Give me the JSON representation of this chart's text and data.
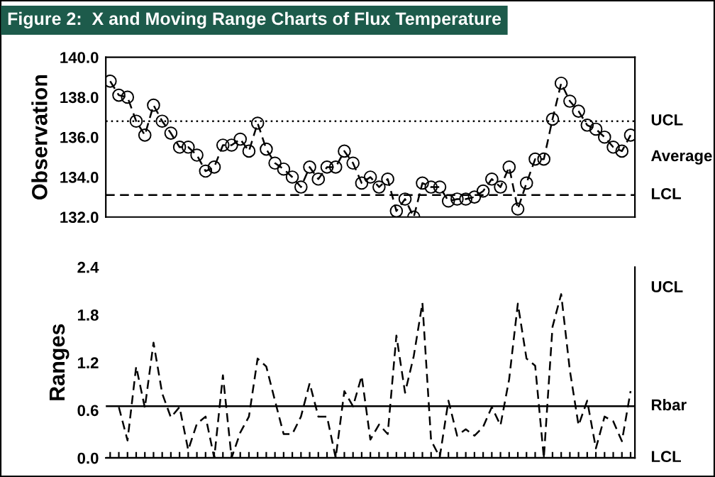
{
  "chart_data": [
    {
      "type": "line",
      "title": "Figure 2:  X and Moving Range Charts of Flux Temperature",
      "ylabel": "Observation",
      "categories": [
        null,
        null,
        null,
        null,
        null,
        null,
        null,
        null,
        null,
        null,
        null,
        null,
        null,
        null,
        null,
        null,
        null,
        null,
        null,
        null,
        null,
        null,
        null,
        null,
        null,
        null,
        null,
        null,
        null,
        null,
        null,
        null,
        null,
        null,
        null,
        null,
        null,
        null,
        null,
        null,
        null,
        null,
        null,
        null,
        null,
        null,
        null,
        null,
        null,
        null,
        null,
        null,
        null,
        null,
        null,
        null,
        null,
        null,
        null,
        null,
        null
      ],
      "series": [
        {
          "color": "#000000",
          "marker": "circle",
          "line_style": "dashed",
          "values": [
            138.8,
            138.1,
            138.0,
            136.8,
            136.1,
            137.6,
            136.8,
            136.2,
            135.5,
            135.5,
            135.1,
            134.3,
            134.5,
            135.6,
            135.6,
            135.9,
            135.3,
            136.7,
            135.4,
            134.7,
            134.4,
            134.0,
            133.5,
            134.5,
            133.9,
            134.5,
            134.5,
            135.3,
            134.7,
            133.7,
            134.0,
            133.5,
            133.9,
            132.3,
            132.9,
            132.0,
            133.7,
            133.5,
            133.5,
            132.8,
            132.9,
            132.9,
            133.0,
            133.3,
            133.9,
            133.5,
            134.5,
            132.4,
            133.7,
            134.9,
            134.9,
            136.9,
            138.7,
            137.8,
            137.3,
            136.6,
            136.4,
            136.0,
            135.5,
            135.3,
            136.1
          ]
        }
      ],
      "ylim": [
        132,
        140
      ],
      "yticks": [
        {
          "value": 132,
          "label": "132.0"
        },
        {
          "value": 134,
          "label": "134.0"
        },
        {
          "value": 136,
          "label": "136.0"
        },
        {
          "value": 138,
          "label": "138.0"
        },
        {
          "value": 140,
          "label": "140.0"
        }
      ],
      "ref_lines": [
        {
          "axis": "y",
          "value": 136.8,
          "label": "UCL",
          "line_style": "dotted"
        },
        {
          "axis": "y",
          "value": 133.1,
          "label": "LCL",
          "line_style": "dashed"
        }
      ],
      "annotations": [
        "Average"
      ],
      "tick_labels": "y",
      "grid": false,
      "legend": false
    },
    {
      "type": "line",
      "ylabel": "Ranges",
      "categories": [
        null,
        null,
        null,
        null,
        null,
        null,
        null,
        null,
        null,
        null,
        null,
        null,
        null,
        null,
        null,
        null,
        null,
        null,
        null,
        null,
        null,
        null,
        null,
        null,
        null,
        null,
        null,
        null,
        null,
        null,
        null,
        null,
        null,
        null,
        null,
        null,
        null,
        null,
        null,
        null,
        null,
        null,
        null,
        null,
        null,
        null,
        null,
        null,
        null,
        null,
        null,
        null,
        null,
        null,
        null,
        null,
        null,
        null,
        null,
        null,
        null
      ],
      "series": [
        {
          "color": "#000000",
          "marker": "none",
          "line_style": "dashed",
          "values": [
            null,
            0.64,
            0.22,
            1.15,
            0.63,
            1.45,
            0.81,
            0.51,
            0.64,
            0.1,
            0.43,
            0.52,
            0.0,
            1.04,
            0.0,
            0.32,
            0.52,
            1.25,
            1.15,
            0.72,
            0.3,
            0.3,
            0.52,
            0.94,
            0.52,
            0.52,
            0.0,
            0.84,
            0.65,
            1.03,
            0.23,
            0.42,
            0.3,
            1.54,
            0.82,
            1.28,
            1.95,
            0.22,
            0.01,
            0.72,
            0.28,
            0.36,
            0.28,
            0.39,
            0.64,
            0.41,
            0.99,
            1.94,
            1.25,
            1.16,
            0.0,
            1.65,
            2.06,
            1.1,
            0.41,
            0.72,
            0.12,
            0.52,
            0.46,
            0.21,
            0.84
          ]
        }
      ],
      "ylim": [
        0,
        2.4
      ],
      "yticks": [
        {
          "value": 0,
          "label": "0.0"
        },
        0.6,
        1.2,
        1.8,
        2.4
      ],
      "annotations": [
        "UCL"
      ],
      "ref_lines": [
        {
          "axis": "y",
          "value": 0.65,
          "label": "Rbar",
          "line_style": "solid"
        },
        {
          "axis": "y",
          "value": 0,
          "label": "LCL",
          "line_style": "solid"
        }
      ],
      "tick_labels": "y",
      "grid": false,
      "legend": false
    }
  ]
}
